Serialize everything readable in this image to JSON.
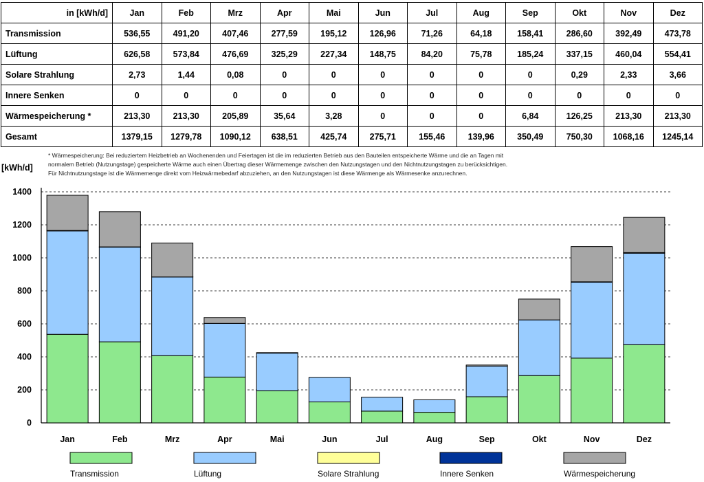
{
  "table": {
    "unit_header": "in [kWh/d]",
    "months": [
      "Jan",
      "Feb",
      "Mrz",
      "Apr",
      "Mai",
      "Jun",
      "Jul",
      "Aug",
      "Sep",
      "Okt",
      "Nov",
      "Dez"
    ],
    "rows": [
      {
        "label": "Transmission",
        "values": [
          "536,55",
          "491,20",
          "407,46",
          "277,59",
          "195,12",
          "126,96",
          "71,26",
          "64,18",
          "158,41",
          "286,60",
          "392,49",
          "473,78"
        ]
      },
      {
        "label": "Lüftung",
        "values": [
          "626,58",
          "573,84",
          "476,69",
          "325,29",
          "227,34",
          "148,75",
          "84,20",
          "75,78",
          "185,24",
          "337,15",
          "460,04",
          "554,41"
        ]
      },
      {
        "label": "Solare Strahlung",
        "values": [
          "2,73",
          "1,44",
          "0,08",
          "0",
          "0",
          "0",
          "0",
          "0",
          "0",
          "0,29",
          "2,33",
          "3,66"
        ]
      },
      {
        "label": "Innere Senken",
        "values": [
          "0",
          "0",
          "0",
          "0",
          "0",
          "0",
          "0",
          "0",
          "0",
          "0",
          "0",
          "0"
        ]
      },
      {
        "label": "Wärmespeicherung *",
        "values": [
          "213,30",
          "213,30",
          "205,89",
          "35,64",
          "3,28",
          "0",
          "0",
          "0",
          "6,84",
          "126,25",
          "213,30",
          "213,30"
        ]
      },
      {
        "label": "Gesamt",
        "values": [
          "1379,15",
          "1279,78",
          "1090,12",
          "638,51",
          "425,74",
          "275,71",
          "155,46",
          "139,96",
          "350,49",
          "750,30",
          "1068,16",
          "1245,14"
        ]
      }
    ]
  },
  "footnote": [
    "* Wärmespeicherung: Bei reduziertem Heizbetrieb an Wochenenden und Feiertagen ist die im reduzierten Betrieb aus den Bauteilen entspeicherte Wärme und die an Tagen mit",
    "normalem Betrieb (Nutzungstage) gespeicherte Wärme auch einen Übertrag dieser Wärmemenge zwischen den Nutzungstagen und den Nichtnutzungstagen zu berücksichtigen.",
    "Für Nichtnutzungstage ist die Wärmemenge direkt vom Heizwärmebedarf abzuziehen, an den Nutzungstagen ist diese Wärmenge als Wärmesenke anzurechnen."
  ],
  "colors": {
    "Transmission": "#8ee88e",
    "Lüftung": "#99ccff",
    "Solare Strahlung": "#ffff99",
    "Innere Senken": "#003399",
    "Wärmespeicherung": "#a6a6a6"
  },
  "chart_data": {
    "type": "bar",
    "stacked": true,
    "ylabel": "[kWh/d]",
    "ylim": [
      0,
      1400
    ],
    "yticks": [
      0,
      200,
      400,
      600,
      800,
      1000,
      1200,
      1400
    ],
    "grid": "horizontal dashed",
    "legend_position": "bottom",
    "categories": [
      "Jan",
      "Feb",
      "Mrz",
      "Apr",
      "Mai",
      "Jun",
      "Jul",
      "Aug",
      "Sep",
      "Okt",
      "Nov",
      "Dez"
    ],
    "series": [
      {
        "name": "Transmission",
        "values": [
          536.55,
          491.2,
          407.46,
          277.59,
          195.12,
          126.96,
          71.26,
          64.18,
          158.41,
          286.6,
          392.49,
          473.78
        ]
      },
      {
        "name": "Lüftung",
        "values": [
          626.58,
          573.84,
          476.69,
          325.29,
          227.34,
          148.75,
          84.2,
          75.78,
          185.24,
          337.15,
          460.04,
          554.41
        ]
      },
      {
        "name": "Solare Strahlung",
        "values": [
          2.73,
          1.44,
          0.08,
          0,
          0,
          0,
          0,
          0,
          0,
          0.29,
          2.33,
          3.66
        ]
      },
      {
        "name": "Innere Senken",
        "values": [
          0,
          0,
          0,
          0,
          0,
          0,
          0,
          0,
          0,
          0,
          0,
          0
        ]
      },
      {
        "name": "Wärmespeicherung",
        "values": [
          213.3,
          213.3,
          205.89,
          35.64,
          3.28,
          0,
          0,
          0,
          6.84,
          126.25,
          213.3,
          213.3
        ]
      }
    ]
  }
}
